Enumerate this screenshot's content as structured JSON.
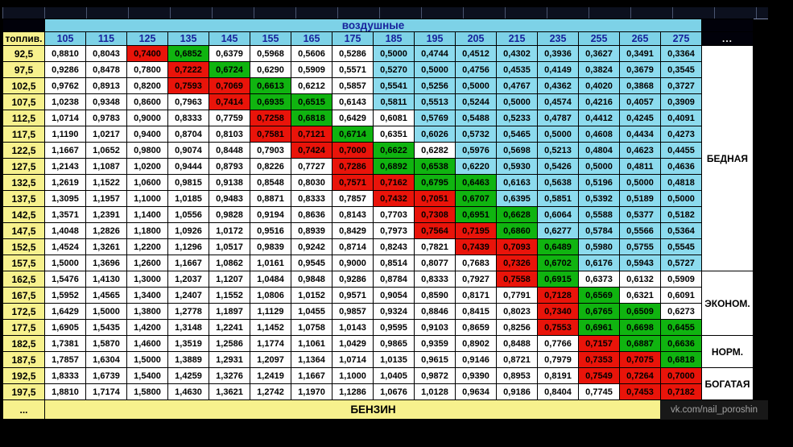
{
  "watermark": "vk.com/nail_poroshin",
  "palette": {
    "w": "#fefefe",
    "r": "#e9140a",
    "g": "#10b410",
    "c": "#8cdbee",
    "header_cyan": "#7dd2e7",
    "yellow": "#f7f18d",
    "navy": "#18239c"
  },
  "chart_data": {
    "type": "table",
    "col_header_title": "воздушные",
    "row_header_title": "топлив.",
    "bottom_row_label": "БЕНЗИН",
    "ellipsis": "...",
    "decimal_separator": ",",
    "columns": [
      105,
      115,
      125,
      135,
      145,
      155,
      165,
      175,
      185,
      195,
      205,
      215,
      235,
      255,
      265,
      275
    ],
    "rows": [
      92.5,
      97.5,
      102.5,
      107.5,
      112.5,
      117.5,
      122.5,
      127.5,
      132.5,
      137.5,
      142.5,
      147.5,
      152.5,
      157.5,
      162.5,
      167.5,
      172.5,
      177.5,
      182.5,
      187.5,
      192.5,
      197.5
    ],
    "zones": [
      {
        "label": "БЕДНАЯ",
        "row_span": 14
      },
      {
        "label": "ЭКОНОМ.",
        "row_span": 4
      },
      {
        "label": "НОРМ.",
        "row_span": 2
      },
      {
        "label": "БОГАТАЯ",
        "row_span": 2
      }
    ],
    "values": [
      [
        0.881,
        0.8043,
        0.74,
        0.6852,
        0.6379,
        0.5968,
        0.5606,
        0.5286,
        0.5,
        0.4744,
        0.4512,
        0.4302,
        0.3936,
        0.3627,
        0.3491,
        0.3364
      ],
      [
        0.9286,
        0.8478,
        0.78,
        0.7222,
        0.6724,
        0.629,
        0.5909,
        0.5571,
        0.527,
        0.5,
        0.4756,
        0.4535,
        0.4149,
        0.3824,
        0.3679,
        0.3545
      ],
      [
        0.9762,
        0.8913,
        0.82,
        0.7593,
        0.7069,
        0.6613,
        0.6212,
        0.5857,
        0.5541,
        0.5256,
        0.5,
        0.4767,
        0.4362,
        0.402,
        0.3868,
        0.3727
      ],
      [
        1.0238,
        0.9348,
        0.86,
        0.7963,
        0.7414,
        0.6935,
        0.6515,
        0.6143,
        0.5811,
        0.5513,
        0.5244,
        0.5,
        0.4574,
        0.4216,
        0.4057,
        0.3909
      ],
      [
        1.0714,
        0.9783,
        0.9,
        0.8333,
        0.7759,
        0.7258,
        0.6818,
        0.6429,
        0.6081,
        0.5769,
        0.5488,
        0.5233,
        0.4787,
        0.4412,
        0.4245,
        0.4091
      ],
      [
        1.119,
        1.0217,
        0.94,
        0.8704,
        0.8103,
        0.7581,
        0.7121,
        0.6714,
        0.6351,
        0.6026,
        0.5732,
        0.5465,
        0.5,
        0.4608,
        0.4434,
        0.4273
      ],
      [
        1.1667,
        1.0652,
        0.98,
        0.9074,
        0.8448,
        0.7903,
        0.7424,
        0.7,
        0.6622,
        0.6282,
        0.5976,
        0.5698,
        0.5213,
        0.4804,
        0.4623,
        0.4455
      ],
      [
        1.2143,
        1.1087,
        1.02,
        0.9444,
        0.8793,
        0.8226,
        0.7727,
        0.7286,
        0.6892,
        0.6538,
        0.622,
        0.593,
        0.5426,
        0.5,
        0.4811,
        0.4636
      ],
      [
        1.2619,
        1.1522,
        1.06,
        0.9815,
        0.9138,
        0.8548,
        0.803,
        0.7571,
        0.7162,
        0.6795,
        0.6463,
        0.6163,
        0.5638,
        0.5196,
        0.5,
        0.4818
      ],
      [
        1.3095,
        1.1957,
        1.1,
        1.0185,
        0.9483,
        0.8871,
        0.8333,
        0.7857,
        0.7432,
        0.7051,
        0.6707,
        0.6395,
        0.5851,
        0.5392,
        0.5189,
        0.5
      ],
      [
        1.3571,
        1.2391,
        1.14,
        1.0556,
        0.9828,
        0.9194,
        0.8636,
        0.8143,
        0.7703,
        0.7308,
        0.6951,
        0.6628,
        0.6064,
        0.5588,
        0.5377,
        0.5182
      ],
      [
        1.4048,
        1.2826,
        1.18,
        1.0926,
        1.0172,
        0.9516,
        0.8939,
        0.8429,
        0.7973,
        0.7564,
        0.7195,
        0.686,
        0.6277,
        0.5784,
        0.5566,
        0.5364
      ],
      [
        1.4524,
        1.3261,
        1.22,
        1.1296,
        1.0517,
        0.9839,
        0.9242,
        0.8714,
        0.8243,
        0.7821,
        0.7439,
        0.7093,
        0.6489,
        0.598,
        0.5755,
        0.5545
      ],
      [
        1.5,
        1.3696,
        1.26,
        1.1667,
        1.0862,
        1.0161,
        0.9545,
        0.9,
        0.8514,
        0.8077,
        0.7683,
        0.7326,
        0.6702,
        0.6176,
        0.5943,
        0.5727
      ],
      [
        1.5476,
        1.413,
        1.3,
        1.2037,
        1.1207,
        1.0484,
        0.9848,
        0.9286,
        0.8784,
        0.8333,
        0.7927,
        0.7558,
        0.6915,
        0.6373,
        0.6132,
        0.5909
      ],
      [
        1.5952,
        1.4565,
        1.34,
        1.2407,
        1.1552,
        1.0806,
        1.0152,
        0.9571,
        0.9054,
        0.859,
        0.8171,
        0.7791,
        0.7128,
        0.6569,
        0.6321,
        0.6091
      ],
      [
        1.6429,
        1.5,
        1.38,
        1.2778,
        1.1897,
        1.1129,
        1.0455,
        0.9857,
        0.9324,
        0.8846,
        0.8415,
        0.8023,
        0.734,
        0.6765,
        0.6509,
        0.6273
      ],
      [
        1.6905,
        1.5435,
        1.42,
        1.3148,
        1.2241,
        1.1452,
        1.0758,
        1.0143,
        0.9595,
        0.9103,
        0.8659,
        0.8256,
        0.7553,
        0.6961,
        0.6698,
        0.6455
      ],
      [
        1.7381,
        1.587,
        1.46,
        1.3519,
        1.2586,
        1.1774,
        1.1061,
        1.0429,
        0.9865,
        0.9359,
        0.8902,
        0.8488,
        0.7766,
        0.7157,
        0.6887,
        0.6636
      ],
      [
        1.7857,
        1.6304,
        1.5,
        1.3889,
        1.2931,
        1.2097,
        1.1364,
        1.0714,
        1.0135,
        0.9615,
        0.9146,
        0.8721,
        0.7979,
        0.7353,
        0.7075,
        0.6818
      ],
      [
        1.8333,
        1.6739,
        1.54,
        1.4259,
        1.3276,
        1.2419,
        1.1667,
        1.1,
        1.0405,
        0.9872,
        0.939,
        0.8953,
        0.8191,
        0.7549,
        0.7264,
        0.7
      ],
      [
        1.881,
        1.7174,
        1.58,
        1.463,
        1.3621,
        1.2742,
        1.197,
        1.1286,
        1.0676,
        1.0128,
        0.9634,
        0.9186,
        0.8404,
        0.7745,
        0.7453,
        0.7182
      ]
    ],
    "cell_colors": [
      "wwrgwwwwcccccccc",
      "wwwrgwwwcccccccc",
      "wwwrrgwwcccccccc",
      "wwwwrggwcccccccc",
      "wwwwwrgwwccccccc",
      "wwwwwrrgwccccccc",
      "wwwwwwrrgwcccccc",
      "wwwwwwwrggcccccc",
      "wwwwwwwrrggccccc",
      "wwwwwwwwrrgccccc",
      "wwwwwwwwwrggcccc",
      "wwwwwwwwwrrgcccc",
      "wwwwwwwwwwrrgccc",
      "wwwwwwwwwwwrgccc",
      "wwwwwwwwwwwrgwww",
      "wwwwwwwwwwwwrgww",
      "wwwwwwwwwwwwrggw",
      "wwwwwwwwwwwwrggg",
      "wwwwwwwwwwwwwrgg",
      "wwwwwwwwwwwwwrrg",
      "wwwwwwwwwwwwwrrr",
      "wwwwwwwwwwwwwwrr"
    ]
  }
}
